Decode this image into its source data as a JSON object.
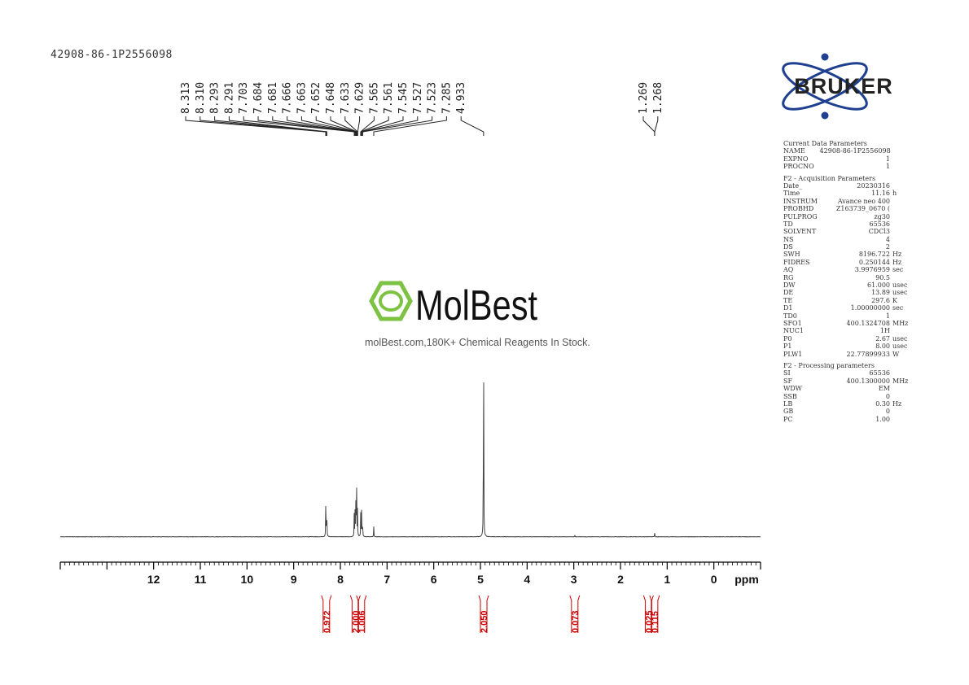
{
  "header": {
    "sample_name": "42908-86-1P2556098"
  },
  "logo": {
    "bruker_text": "BRUKER"
  },
  "watermark": {
    "brand": "MolBest",
    "tagline": "molBest.com,180K+ Chemical Reagents In Stock."
  },
  "colors": {
    "spectrum": "#444444",
    "integral": "#cc0000",
    "bruker_blue": "#1f3f8f",
    "bruker_text": "#222222",
    "watermark_green": "#7dc242"
  },
  "chart_data": {
    "type": "line",
    "xlabel": "ppm",
    "xlim": [
      14,
      -1
    ],
    "x_reversed": true,
    "ticks": [
      12,
      11,
      10,
      9,
      8,
      7,
      6,
      5,
      4,
      3,
      2,
      1,
      0
    ],
    "tick_labels": [
      "12",
      "11",
      "10",
      "9",
      "8",
      "7",
      "6",
      "5",
      "4",
      "3",
      "2",
      "1",
      "0"
    ],
    "peak_labels_left": [
      "8.313",
      "8.310",
      "8.293",
      "8.291",
      "7.703",
      "7.684",
      "7.681",
      "7.666",
      "7.663",
      "7.652",
      "7.648",
      "7.633",
      "7.629",
      "7.565",
      "7.561",
      "7.545",
      "7.527",
      "7.523",
      "7.285",
      "4.933"
    ],
    "peak_labels_right": [
      "1.269",
      "1.268"
    ],
    "peaks": [
      {
        "ppm": 8.312,
        "height": 0.155
      },
      {
        "ppm": 8.292,
        "height": 0.15
      },
      {
        "ppm": 7.703,
        "height": 0.09
      },
      {
        "ppm": 7.684,
        "height": 0.13
      },
      {
        "ppm": 7.666,
        "height": 0.2
      },
      {
        "ppm": 7.652,
        "height": 0.19
      },
      {
        "ppm": 7.633,
        "height": 0.11
      },
      {
        "ppm": 7.563,
        "height": 0.1
      },
      {
        "ppm": 7.545,
        "height": 0.12
      },
      {
        "ppm": 7.525,
        "height": 0.08
      },
      {
        "ppm": 7.285,
        "height": 0.04
      },
      {
        "ppm": 4.933,
        "height": 1.0
      },
      {
        "ppm": 2.98,
        "height": 0.008
      },
      {
        "ppm": 1.269,
        "height": 0.018
      }
    ],
    "integrals": [
      {
        "ppm": 8.3,
        "value": "0.972"
      },
      {
        "ppm": 7.68,
        "value": "2.000"
      },
      {
        "ppm": 7.55,
        "value": "1.006"
      },
      {
        "ppm": 4.93,
        "value": "2.050"
      },
      {
        "ppm": 2.98,
        "value": "0.073"
      },
      {
        "ppm": 1.4,
        "value": "0.025"
      },
      {
        "ppm": 1.27,
        "value": "0.115"
      }
    ]
  },
  "parameters": {
    "sections": [
      {
        "title": "Current Data Parameters",
        "rows": [
          {
            "key": "NAME",
            "value": "42908-86-1P2556098",
            "unit": ""
          },
          {
            "key": "EXPNO",
            "value": "1",
            "unit": ""
          },
          {
            "key": "PROCNO",
            "value": "1",
            "unit": ""
          }
        ]
      },
      {
        "title": "F2 - Acquisition Parameters",
        "rows": [
          {
            "key": "Date_",
            "value": "20230316",
            "unit": ""
          },
          {
            "key": "Time",
            "value": "11.16",
            "unit": "h"
          },
          {
            "key": "INSTRUM",
            "value": "Avance neo 400",
            "unit": ""
          },
          {
            "key": "PROBHD",
            "value": "Z163739_0670 (",
            "unit": ""
          },
          {
            "key": "PULPROG",
            "value": "zg30",
            "unit": ""
          },
          {
            "key": "TD",
            "value": "65536",
            "unit": ""
          },
          {
            "key": "SOLVENT",
            "value": "CDCl3",
            "unit": ""
          },
          {
            "key": "NS",
            "value": "4",
            "unit": ""
          },
          {
            "key": "DS",
            "value": "2",
            "unit": ""
          },
          {
            "key": "SWH",
            "value": "8196.722",
            "unit": "Hz"
          },
          {
            "key": "FIDRES",
            "value": "0.250144",
            "unit": "Hz"
          },
          {
            "key": "AQ",
            "value": "3.9976959",
            "unit": "sec"
          },
          {
            "key": "RG",
            "value": "90.5",
            "unit": ""
          },
          {
            "key": "DW",
            "value": "61.000",
            "unit": "usec"
          },
          {
            "key": "DE",
            "value": "13.89",
            "unit": "usec"
          },
          {
            "key": "TE",
            "value": "297.6",
            "unit": "K"
          },
          {
            "key": "D1",
            "value": "1.00000000",
            "unit": "sec"
          },
          {
            "key": "TD0",
            "value": "1",
            "unit": ""
          },
          {
            "key": "SFO1",
            "value": "400.1324708",
            "unit": "MHz"
          },
          {
            "key": "NUC1",
            "value": "1H",
            "unit": ""
          },
          {
            "key": "P0",
            "value": "2.67",
            "unit": "usec"
          },
          {
            "key": "P1",
            "value": "8.00",
            "unit": "usec"
          },
          {
            "key": "PLW1",
            "value": "22.77899933",
            "unit": "W"
          }
        ]
      },
      {
        "title": "F2 - Processing parameters",
        "rows": [
          {
            "key": "SI",
            "value": "65536",
            "unit": ""
          },
          {
            "key": "SF",
            "value": "400.1300000",
            "unit": "MHz"
          },
          {
            "key": "WDW",
            "value": "EM",
            "unit": ""
          },
          {
            "key": "SSB",
            "value": "0",
            "unit": ""
          },
          {
            "key": "LB",
            "value": "0.30",
            "unit": "Hz"
          },
          {
            "key": "GB",
            "value": "0",
            "unit": ""
          },
          {
            "key": "PC",
            "value": "1.00",
            "unit": ""
          }
        ]
      }
    ]
  }
}
